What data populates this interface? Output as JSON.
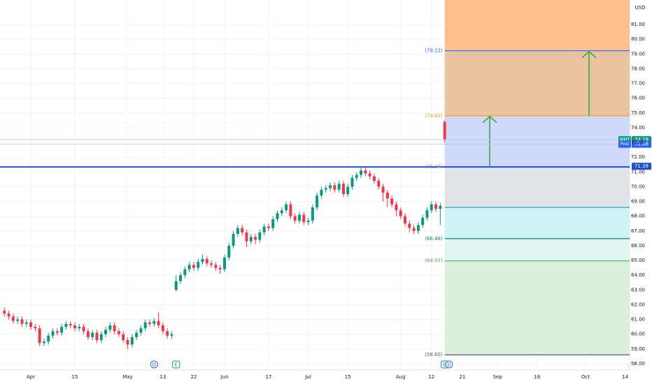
{
  "chart_data": {
    "type": "candlestick",
    "currency": "USD",
    "up_color": "#089981",
    "down_color": "#f23645",
    "grid": true,
    "xlim": [
      -7,
      136
    ],
    "ylim": [
      57.57,
      82.66
    ],
    "xticks": [
      {
        "value": 0,
        "label": "Apr"
      },
      {
        "value": 10,
        "label": "15"
      },
      {
        "value": 22,
        "label": "May"
      },
      {
        "value": 30,
        "label": "13"
      },
      {
        "value": 37,
        "label": "22"
      },
      {
        "value": 44,
        "label": "Jun"
      },
      {
        "value": 54,
        "label": "17"
      },
      {
        "value": 63,
        "label": "Jul"
      },
      {
        "value": 72,
        "label": "15"
      },
      {
        "value": 84,
        "label": "Aug"
      },
      {
        "value": 91,
        "label": "12"
      },
      {
        "value": 98,
        "label": "21"
      },
      {
        "value": 106,
        "label": "Sep"
      },
      {
        "value": 115,
        "label": "16"
      },
      {
        "value": 126,
        "label": "Oct"
      },
      {
        "value": 135,
        "label": "14"
      }
    ],
    "yticks": [
      {
        "value": 58,
        "label": "58.00"
      },
      {
        "value": 59,
        "label": "59.00"
      },
      {
        "value": 60,
        "label": "60.00"
      },
      {
        "value": 61,
        "label": "61.00"
      },
      {
        "value": 62,
        "label": "62.00"
      },
      {
        "value": 63,
        "label": "63.00"
      },
      {
        "value": 64,
        "label": "64.00"
      },
      {
        "value": 65,
        "label": "65.00"
      },
      {
        "value": 66,
        "label": "66.00"
      },
      {
        "value": 67,
        "label": "67.00"
      },
      {
        "value": 68,
        "label": "68.00"
      },
      {
        "value": 69,
        "label": "69.00"
      },
      {
        "value": 70,
        "label": "70.00"
      },
      {
        "value": 71,
        "label": "71.00"
      },
      {
        "value": 72,
        "label": "72.00"
      },
      {
        "value": 73,
        "label": "73.00"
      },
      {
        "value": 74,
        "label": "74.00"
      },
      {
        "value": 75,
        "label": "75.00"
      },
      {
        "value": 76,
        "label": "76.00"
      },
      {
        "value": 77,
        "label": "77.00"
      },
      {
        "value": 78,
        "label": "78.00"
      },
      {
        "value": 79,
        "label": "79.00"
      },
      {
        "value": 80,
        "label": "80.00"
      },
      {
        "value": 81,
        "label": "81.00"
      }
    ],
    "x": [
      -6,
      -5,
      -4,
      -3,
      -2,
      -1,
      0,
      1,
      2,
      3,
      4,
      5,
      6,
      7,
      8,
      9,
      10,
      11,
      12,
      13,
      14,
      15,
      16,
      17,
      18,
      19,
      20,
      21,
      22,
      23,
      24,
      25,
      26,
      27,
      28,
      29,
      30,
      31,
      32,
      33,
      34,
      35,
      36,
      37,
      38,
      39,
      40,
      41,
      42,
      43,
      44,
      45,
      46,
      47,
      48,
      49,
      50,
      51,
      52,
      53,
      54,
      55,
      56,
      57,
      58,
      59,
      60,
      61,
      62,
      63,
      64,
      65,
      66,
      67,
      68,
      69,
      70,
      71,
      72,
      73,
      74,
      75,
      76,
      77,
      78,
      79,
      80,
      81,
      82,
      83,
      84,
      85,
      86,
      87,
      88,
      89,
      90,
      91,
      92,
      93,
      94
    ],
    "open": [
      61.6,
      61.4,
      61.2,
      60.9,
      61.0,
      60.7,
      60.8,
      60.5,
      60.4,
      59.4,
      59.5,
      59.9,
      60.2,
      60.1,
      60.5,
      60.7,
      60.6,
      60.4,
      60.5,
      60.2,
      59.8,
      60.1,
      59.6,
      60.0,
      60.3,
      60.6,
      60.2,
      60.0,
      59.6,
      59.3,
      59.8,
      60.1,
      60.4,
      60.8,
      60.7,
      60.9,
      60.6,
      60.2,
      59.9,
      63.0,
      63.6,
      64.0,
      64.4,
      64.7,
      64.5,
      64.9,
      65.1,
      64.8,
      64.7,
      64.5,
      64.4,
      65.2,
      66.0,
      66.8,
      67.2,
      66.9,
      66.3,
      66.6,
      66.4,
      66.9,
      67.3,
      67.2,
      67.8,
      68.2,
      68.4,
      68.8,
      68.0,
      67.7,
      68.1,
      67.6,
      67.7,
      68.6,
      69.4,
      69.8,
      69.9,
      70.1,
      69.8,
      70.2,
      69.5,
      70.0,
      70.6,
      70.8,
      71.1,
      70.9,
      70.7,
      70.4,
      70.0,
      69.6,
      69.2,
      68.8,
      68.4,
      68.0,
      67.5,
      67.2,
      67.0,
      67.4,
      67.9,
      68.4,
      68.8,
      68.5,
      74.4
    ],
    "high": [
      61.8,
      61.6,
      61.4,
      61.2,
      61.2,
      61.0,
      61.0,
      60.7,
      60.6,
      59.7,
      60.1,
      60.4,
      60.4,
      60.7,
      60.9,
      60.9,
      60.8,
      60.7,
      60.7,
      60.4,
      60.3,
      60.3,
      60.2,
      60.5,
      60.8,
      60.8,
      60.4,
      60.2,
      59.8,
      60.0,
      60.3,
      60.6,
      61.0,
      61.0,
      61.1,
      61.5,
      60.8,
      60.4,
      60.2,
      64.0,
      64.2,
      64.6,
      64.9,
      64.9,
      65.1,
      65.4,
      65.3,
      65.0,
      64.9,
      64.7,
      65.4,
      66.2,
      67.0,
      67.4,
      67.4,
      67.1,
      66.8,
      66.8,
      67.1,
      67.5,
      67.5,
      68.0,
      68.4,
      68.6,
      69.0,
      69.0,
      68.2,
      68.3,
      68.3,
      67.9,
      68.8,
      69.6,
      70.0,
      70.1,
      70.3,
      70.3,
      70.4,
      70.4,
      70.2,
      70.8,
      71.0,
      71.3,
      71.3,
      71.1,
      70.9,
      70.6,
      70.2,
      69.8,
      69.4,
      69.0,
      68.6,
      68.2,
      67.7,
      67.4,
      67.6,
      68.1,
      68.6,
      69.0,
      69.0,
      68.9,
      74.5
    ],
    "low": [
      61.2,
      61.0,
      60.7,
      60.7,
      60.5,
      60.5,
      60.3,
      60.2,
      59.2,
      59.2,
      59.3,
      59.7,
      59.9,
      59.9,
      60.3,
      60.4,
      60.2,
      60.2,
      60.0,
      59.6,
      59.6,
      59.4,
      59.4,
      59.8,
      60.1,
      60.0,
      59.8,
      59.4,
      59.0,
      59.1,
      59.6,
      59.9,
      60.2,
      60.5,
      60.5,
      60.4,
      60.0,
      59.7,
      59.7,
      62.9,
      63.4,
      63.8,
      64.2,
      64.3,
      64.3,
      64.7,
      64.6,
      64.5,
      64.3,
      64.1,
      64.2,
      65.0,
      65.8,
      66.6,
      66.7,
      65.9,
      66.1,
      66.1,
      66.2,
      66.7,
      67.0,
      67.0,
      67.6,
      68.0,
      68.2,
      67.8,
      67.5,
      67.5,
      67.4,
      67.4,
      67.5,
      68.4,
      69.2,
      69.6,
      69.7,
      69.6,
      69.6,
      69.3,
      69.3,
      69.8,
      70.4,
      70.6,
      70.7,
      70.5,
      70.2,
      69.8,
      69.0,
      68.6,
      68.6,
      68.0,
      67.8,
      67.3,
      66.9,
      66.8,
      66.8,
      67.2,
      67.7,
      68.2,
      68.3,
      67.4,
      73.0
    ],
    "close": [
      61.4,
      61.2,
      60.9,
      61.0,
      60.7,
      60.8,
      60.5,
      60.4,
      59.4,
      59.5,
      59.9,
      60.2,
      60.1,
      60.5,
      60.7,
      60.6,
      60.4,
      60.5,
      60.2,
      59.8,
      60.1,
      59.6,
      60.0,
      60.3,
      60.6,
      60.2,
      60.0,
      59.6,
      59.3,
      59.8,
      60.1,
      60.4,
      60.8,
      60.7,
      60.9,
      60.6,
      60.2,
      59.9,
      60.0,
      63.6,
      64.0,
      64.4,
      64.7,
      64.5,
      64.9,
      65.1,
      64.8,
      64.7,
      64.5,
      64.4,
      65.2,
      66.0,
      66.8,
      67.2,
      66.9,
      66.3,
      66.6,
      66.4,
      66.9,
      67.3,
      67.2,
      67.8,
      68.2,
      68.4,
      68.8,
      68.0,
      67.7,
      68.1,
      67.6,
      67.7,
      68.6,
      69.4,
      69.8,
      69.9,
      70.1,
      69.8,
      70.2,
      69.5,
      70.0,
      70.6,
      70.8,
      71.1,
      70.9,
      70.7,
      70.4,
      70.0,
      69.6,
      69.2,
      68.8,
      68.4,
      68.0,
      67.5,
      67.2,
      67.0,
      67.4,
      67.9,
      68.4,
      68.8,
      68.5,
      68.7,
      73.2
    ],
    "zone_start": 94,
    "zones": [
      {
        "from": 79.22,
        "to": 82.66,
        "color": "#fdc08e"
      },
      {
        "from": 74.81,
        "to": 79.22,
        "color": "#e8c4a2"
      },
      {
        "from": 71.34,
        "to": 74.81,
        "color": "#cfdafb"
      },
      {
        "from": 68.6,
        "to": 71.34,
        "color": "#e2e3e6"
      },
      {
        "from": 66.48,
        "to": 68.6,
        "color": "#cff3f6"
      },
      {
        "from": 64.97,
        "to": 66.48,
        "color": "#e2f4f0"
      },
      {
        "from": 58.6,
        "to": 64.97,
        "color": "#ddeedd"
      }
    ],
    "levels": [
      {
        "value": 79.22,
        "label": "(79.22)",
        "color": "#2962ff"
      },
      {
        "value": 74.81,
        "label": "(74.81)",
        "color": "#ff9800"
      },
      {
        "value": 71.34,
        "label": "(71.34)",
        "color": "#1e4fd8",
        "full_width": true
      },
      {
        "value": 68.6,
        "color": "#26a6c8"
      },
      {
        "value": 66.48,
        "label": "(66.48)",
        "color": "#138a5e"
      },
      {
        "value": 64.97,
        "label": "(64.97)",
        "color": "#4caf50"
      },
      {
        "value": 58.6,
        "label": "(58.60)",
        "color": "#555b66"
      }
    ],
    "price_tags": [
      {
        "name": "WMT",
        "value": 73.19,
        "label": "73.19",
        "color": "#089981",
        "line": true
      },
      {
        "name": "Post",
        "value": 72.88,
        "label": "72.88",
        "color": "#2962ff",
        "line": true
      },
      {
        "value": 71.39,
        "label": "71.39",
        "color": "#1e4fd8"
      }
    ],
    "events": [
      {
        "x": 28,
        "label": "D",
        "shape": "circle",
        "color": "#2962ff"
      },
      {
        "x": 33,
        "label": "E",
        "shape": "square",
        "color": "#089981"
      },
      {
        "x": 94,
        "label": "E",
        "shape": "square",
        "color": "#089981"
      },
      {
        "x": 95,
        "label": "D",
        "shape": "circle",
        "color": "#2962ff"
      }
    ]
  }
}
